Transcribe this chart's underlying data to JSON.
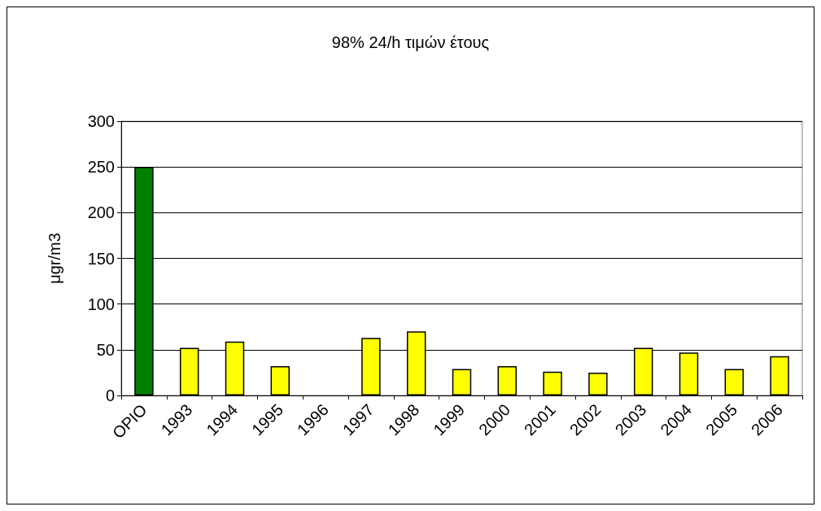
{
  "chart_data": {
    "type": "bar",
    "title": "98% 24/h τιμών έτους",
    "ylabel": "μgr/m3",
    "categories": [
      "ΟΡΙΟ",
      "1993",
      "1994",
      "1995",
      "1996",
      "1997",
      "1998",
      "1999",
      "2000",
      "2001",
      "2002",
      "2003",
      "2004",
      "2005",
      "2006"
    ],
    "values": [
      250,
      52,
      59,
      32,
      null,
      63,
      70,
      29,
      32,
      26,
      25,
      52,
      47,
      29,
      43
    ],
    "colors": [
      "#008000",
      "#ffff00",
      "#ffff00",
      "#ffff00",
      "#ffff00",
      "#ffff00",
      "#ffff00",
      "#ffff00",
      "#ffff00",
      "#ffff00",
      "#ffff00",
      "#ffff00",
      "#ffff00",
      "#ffff00",
      "#ffff00"
    ],
    "ylim": [
      0,
      300
    ],
    "yticks": [
      0,
      50,
      100,
      150,
      200,
      250,
      300
    ],
    "grid": "y"
  }
}
